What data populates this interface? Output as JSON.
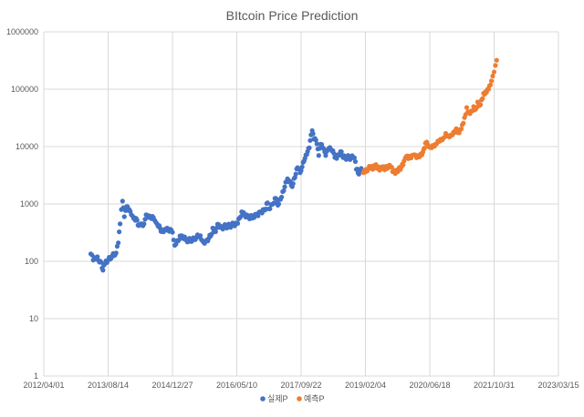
{
  "chart_data": {
    "type": "scatter",
    "title": "BItcoin Price Prediction",
    "xlabel": "",
    "ylabel": "",
    "y_scale": "log",
    "ylim": [
      1,
      1000000
    ],
    "y_ticks": [
      1,
      10,
      100,
      1000,
      10000,
      100000,
      1000000
    ],
    "y_tick_labels": [
      "1",
      "10",
      "100",
      "1000",
      "10000",
      "100000",
      "1000000"
    ],
    "x_axis_type": "date",
    "xlim": [
      "2012/04/01",
      "2023/03/15"
    ],
    "x_ticks": [
      "2012/04/01",
      "2013/08/14",
      "2014/12/27",
      "2016/05/10",
      "2017/09/22",
      "2019/02/04",
      "2020/06/18",
      "2021/10/31",
      "2023/03/15"
    ],
    "x_tick_labels": [
      "2012/04/01",
      "2013/08/14",
      "2014/12/27",
      "2016/05/10",
      "2017/09/22",
      "2019/02/04",
      "2020/06/18",
      "2021/10/31",
      "2023/03/15"
    ],
    "grid": true,
    "legend_position": "bottom",
    "series": [
      {
        "name": "실제P",
        "color": "#4472C4",
        "points": [
          [
            "2013/04/01",
            135
          ],
          [
            "2013/04/20",
            105
          ],
          [
            "2013/05/15",
            115
          ],
          [
            "2013/06/15",
            100
          ],
          [
            "2013/07/05",
            70
          ],
          [
            "2013/07/20",
            90
          ],
          [
            "2013/08/14",
            105
          ],
          [
            "2013/09/15",
            125
          ],
          [
            "2013/10/15",
            140
          ],
          [
            "2013/11/01",
            210
          ],
          [
            "2013/11/15",
            450
          ],
          [
            "2013/11/25",
            800
          ],
          [
            "2013/12/04",
            1120
          ],
          [
            "2013/12/18",
            600
          ],
          [
            "2014/01/05",
            900
          ],
          [
            "2014/01/25",
            800
          ],
          [
            "2014/02/10",
            650
          ],
          [
            "2014/02/28",
            560
          ],
          [
            "2014/03/20",
            560
          ],
          [
            "2014/04/10",
            420
          ],
          [
            "2014/04/25",
            450
          ],
          [
            "2014/05/20",
            450
          ],
          [
            "2014/06/05",
            650
          ],
          [
            "2014/07/01",
            620
          ],
          [
            "2014/08/01",
            580
          ],
          [
            "2014/08/20",
            480
          ],
          [
            "2014/09/15",
            420
          ],
          [
            "2014/10/05",
            330
          ],
          [
            "2014/10/25",
            360
          ],
          [
            "2014/11/15",
            380
          ],
          [
            "2014/12/27",
            320
          ],
          [
            "2015/01/14",
            190
          ],
          [
            "2015/02/01",
            230
          ],
          [
            "2015/03/10",
            280
          ],
          [
            "2015/04/15",
            230
          ],
          [
            "2015/05/15",
            235
          ],
          [
            "2015/06/15",
            240
          ],
          [
            "2015/07/10",
            290
          ],
          [
            "2015/08/01",
            280
          ],
          [
            "2015/08/25",
            215
          ],
          [
            "2015/09/20",
            235
          ],
          [
            "2015/10/20",
            275
          ],
          [
            "2015/11/05",
            380
          ],
          [
            "2015/11/20",
            330
          ],
          [
            "2015/12/20",
            440
          ],
          [
            "2016/01/15",
            390
          ],
          [
            "2016/02/15",
            410
          ],
          [
            "2016/03/15",
            415
          ],
          [
            "2016/04/15",
            440
          ],
          [
            "2016/05/10",
            460
          ],
          [
            "2016/06/01",
            570
          ],
          [
            "2016/06/17",
            730
          ],
          [
            "2016/07/10",
            650
          ],
          [
            "2016/08/10",
            580
          ],
          [
            "2016/09/15",
            610
          ],
          [
            "2016/10/15",
            640
          ],
          [
            "2016/11/15",
            720
          ],
          [
            "2016/12/15",
            780
          ],
          [
            "2017/01/04",
            1050
          ],
          [
            "2017/01/15",
            820
          ],
          [
            "2017/02/15",
            1000
          ],
          [
            "2017/03/10",
            1250
          ],
          [
            "2017/03/25",
            950
          ],
          [
            "2017/04/15",
            1200
          ],
          [
            "2017/05/10",
            1700
          ],
          [
            "2017/05/25",
            2400
          ],
          [
            "2017/06/15",
            2600
          ],
          [
            "2017/07/15",
            2000
          ],
          [
            "2017/08/05",
            2900
          ],
          [
            "2017/08/25",
            4300
          ],
          [
            "2017/09/15",
            3500
          ],
          [
            "2017/09/22",
            3800
          ],
          [
            "2017/10/15",
            5600
          ],
          [
            "2017/11/05",
            7300
          ],
          [
            "2017/11/25",
            9500
          ],
          [
            "2017/12/08",
            16000
          ],
          [
            "2017/12/17",
            19000
          ],
          [
            "2017/12/30",
            13500
          ],
          [
            "2018/01/15",
            13000
          ],
          [
            "2018/02/06",
            7000
          ],
          [
            "2018/02/20",
            11000
          ],
          [
            "2018/03/10",
            9500
          ],
          [
            "2018/04/01",
            7000
          ],
          [
            "2018/04/25",
            9300
          ],
          [
            "2018/05/20",
            8400
          ],
          [
            "2018/06/25",
            6200
          ],
          [
            "2018/07/25",
            8200
          ],
          [
            "2018/08/15",
            6400
          ],
          [
            "2018/09/15",
            6500
          ],
          [
            "2018/10/15",
            6400
          ],
          [
            "2018/11/10",
            6400
          ],
          [
            "2018/11/25",
            4000
          ],
          [
            "2018/12/15",
            3300
          ],
          [
            "2018/12/25",
            4000
          ],
          [
            "2019/01/10",
            3700
          ]
        ]
      },
      {
        "name": "예측P",
        "color": "#ED7D31",
        "points": [
          [
            "2019/01/20",
            3500
          ],
          [
            "2019/02/04",
            3600
          ],
          [
            "2019/02/25",
            4000
          ],
          [
            "2019/03/15",
            4400
          ],
          [
            "2019/04/01",
            4000
          ],
          [
            "2019/04/20",
            4700
          ],
          [
            "2019/05/10",
            4200
          ],
          [
            "2019/06/01",
            4000
          ],
          [
            "2019/06/20",
            4300
          ],
          [
            "2019/07/10",
            4100
          ],
          [
            "2019/08/01",
            4600
          ],
          [
            "2019/08/20",
            4400
          ],
          [
            "2019/09/10",
            3700
          ],
          [
            "2019/09/30",
            3600
          ],
          [
            "2019/10/20",
            4100
          ],
          [
            "2019/11/10",
            4400
          ],
          [
            "2019/12/01",
            5600
          ],
          [
            "2019/12/20",
            6800
          ],
          [
            "2020/01/10",
            6600
          ],
          [
            "2020/02/01",
            7000
          ],
          [
            "2020/02/20",
            7200
          ],
          [
            "2020/03/15",
            6800
          ],
          [
            "2020/04/05",
            7300
          ],
          [
            "2020/04/25",
            8000
          ],
          [
            "2020/05/15",
            11500
          ],
          [
            "2020/05/25",
            12000
          ],
          [
            "2020/06/10",
            10000
          ],
          [
            "2020/06/18",
            9700
          ],
          [
            "2020/07/10",
            10500
          ],
          [
            "2020/08/01",
            11000
          ],
          [
            "2020/08/20",
            12500
          ],
          [
            "2020/09/10",
            13500
          ],
          [
            "2020/10/01",
            14000
          ],
          [
            "2020/10/20",
            17000
          ],
          [
            "2020/11/10",
            15500
          ],
          [
            "2020/12/01",
            16000
          ],
          [
            "2020/12/20",
            18000
          ],
          [
            "2021/01/10",
            20500
          ],
          [
            "2021/01/25",
            17500
          ],
          [
            "2021/02/10",
            20000
          ],
          [
            "2021/02/25",
            24000
          ],
          [
            "2021/03/15",
            32000
          ],
          [
            "2021/04/01",
            48000
          ],
          [
            "2021/04/20",
            40000
          ],
          [
            "2021/05/10",
            42000
          ],
          [
            "2021/05/25",
            50000
          ],
          [
            "2021/06/10",
            45000
          ],
          [
            "2021/06/25",
            60000
          ],
          [
            "2021/07/10",
            52000
          ],
          [
            "2021/07/25",
            65000
          ],
          [
            "2021/08/10",
            85000
          ],
          [
            "2021/08/25",
            90000
          ],
          [
            "2021/09/10",
            100000
          ],
          [
            "2021/09/25",
            115000
          ],
          [
            "2021/10/10",
            140000
          ],
          [
            "2021/10/20",
            170000
          ],
          [
            "2021/10/31",
            200000
          ],
          [
            "2021/11/10",
            260000
          ],
          [
            "2021/11/20",
            320000
          ]
        ]
      }
    ]
  }
}
